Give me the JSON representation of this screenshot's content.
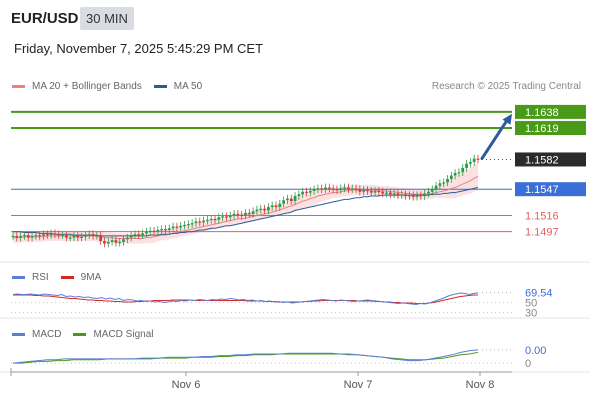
{
  "header": {
    "pair": "EUR/USD",
    "timeframe": "30 MIN",
    "datetime": "Friday, November 7, 2025 5:45:29 PM CET"
  },
  "legend_main": [
    {
      "label": "MA 20 + Bollinger Bands",
      "color": "#f08080"
    },
    {
      "label": "MA 50",
      "color": "#2c5aa0"
    }
  ],
  "credit": "Research © 2025 Trading Central",
  "legend_rsi": [
    {
      "label": "RSI",
      "color": "#5b7fd6"
    },
    {
      "label": "9MA",
      "color": "#d62728"
    }
  ],
  "legend_macd": [
    {
      "label": "MACD",
      "color": "#5b7fd6"
    },
    {
      "label": "MACD Signal",
      "color": "#4a9a1a"
    }
  ],
  "colors": {
    "resistance": "#4a9a1a",
    "pivot": "#3a6fd8",
    "support": "#e06060",
    "arrow": "#2c5aa0",
    "last_price_bg": "#2b2b2b",
    "bullish": "#2e9a4a",
    "bearish": "#d03c3c"
  },
  "chart_data": [
    {
      "type": "candlestick",
      "ylim": [
        1.1466,
        1.1652
      ],
      "x_ticks": [
        "Nov 6",
        "Nov 7",
        "Nov 8"
      ],
      "levels": [
        {
          "value": 1.1638,
          "label": "1.1638",
          "kind": "resistance"
        },
        {
          "value": 1.1619,
          "label": "1.1619",
          "kind": "resistance"
        },
        {
          "value": 1.1582,
          "label": "1.1582",
          "kind": "last"
        },
        {
          "value": 1.1547,
          "label": "1.1547",
          "kind": "pivot"
        },
        {
          "value": 1.1516,
          "label": "1.1516",
          "kind": "support"
        },
        {
          "value": 1.1497,
          "label": "1.1497",
          "kind": "support"
        }
      ],
      "close": [
        1.1492,
        1.149,
        1.1492,
        1.1493,
        1.149,
        1.1492,
        1.1493,
        1.1492,
        1.1494,
        1.1493,
        1.1495,
        1.1494,
        1.1493,
        1.1493,
        1.149,
        1.149,
        1.1492,
        1.149,
        1.1491,
        1.1493,
        1.1494,
        1.1492,
        1.1493,
        1.1486,
        1.1483,
        1.1485,
        1.1487,
        1.1484,
        1.1485,
        1.1488,
        1.149,
        1.1493,
        1.1494,
        1.1493,
        1.1495,
        1.1497,
        1.1498,
        1.1497,
        1.1499,
        1.15,
        1.1499,
        1.1501,
        1.1503,
        1.1502,
        1.1504,
        1.1505,
        1.1506,
        1.1507,
        1.1509,
        1.1508,
        1.151,
        1.1511,
        1.1512,
        1.1511,
        1.1514,
        1.1515,
        1.1514,
        1.1516,
        1.1518,
        1.1517,
        1.1516,
        1.1519,
        1.1518,
        1.1521,
        1.1523,
        1.1524,
        1.1522,
        1.1526,
        1.1528,
        1.1526,
        1.153,
        1.1534,
        1.1536,
        1.1533,
        1.1539,
        1.1541,
        1.1544,
        1.1543,
        1.1545,
        1.1547,
        1.1548,
        1.1547,
        1.1549,
        1.1548,
        1.1547,
        1.1546,
        1.1548,
        1.1549,
        1.1547,
        1.1548,
        1.1547,
        1.1544,
        1.1546,
        1.1545,
        1.1543,
        1.1545,
        1.1544,
        1.1542,
        1.1543,
        1.1541,
        1.1542,
        1.154,
        1.1541,
        1.1539,
        1.154,
        1.1538,
        1.154,
        1.1539,
        1.1542,
        1.1544,
        1.1547,
        1.1551,
        1.1554,
        1.1555,
        1.1559,
        1.1563,
        1.1566,
        1.1567,
        1.1572,
        1.1577,
        1.1579,
        1.1583,
        1.1582
      ],
      "ma20": [
        1.149,
        1.149,
        1.149,
        1.1491,
        1.1491,
        1.1491,
        1.1491,
        1.1491,
        1.1491,
        1.1492,
        1.1492,
        1.1492,
        1.1492,
        1.1492,
        1.1492,
        1.1492,
        1.1492,
        1.1492,
        1.1492,
        1.1492,
        1.1492,
        1.1492,
        1.1491,
        1.1491,
        1.149,
        1.149,
        1.149,
        1.1489,
        1.1489,
        1.1489,
        1.1489,
        1.1489,
        1.1489,
        1.1489,
        1.1489,
        1.149,
        1.149,
        1.1491,
        1.1492,
        1.1493,
        1.1493,
        1.1494,
        1.1495,
        1.1496,
        1.1497,
        1.1498,
        1.1499,
        1.15,
        1.1501,
        1.1502,
        1.1503,
        1.1504,
        1.1505,
        1.1506,
        1.1507,
        1.1508,
        1.1509,
        1.151,
        1.1511,
        1.1512,
        1.1512,
        1.1513,
        1.1514,
        1.1515,
        1.1516,
        1.1517,
        1.1518,
        1.1519,
        1.152,
        1.1521,
        1.1523,
        1.1524,
        1.1526,
        1.1527,
        1.1529,
        1.1531,
        1.1533,
        1.1534,
        1.1536,
        1.1537,
        1.1539,
        1.154,
        1.1541,
        1.1542,
        1.1543,
        1.1543,
        1.1544,
        1.1545,
        1.1545,
        1.1546,
        1.1546,
        1.1546,
        1.1546,
        1.1546,
        1.1546,
        1.1546,
        1.1545,
        1.1545,
        1.1545,
        1.1544,
        1.1544,
        1.1543,
        1.1543,
        1.1542,
        1.1542,
        1.1541,
        1.1541,
        1.1541,
        1.1541,
        1.1541,
        1.1542,
        1.1543,
        1.1544,
        1.1545,
        1.1546,
        1.1548,
        1.1549,
        1.1551,
        1.1553,
        1.1555,
        1.1557,
        1.156,
        1.1562
      ],
      "ma50": [
        1.1497,
        1.1497,
        1.1497,
        1.1496,
        1.1496,
        1.1496,
        1.1496,
        1.1495,
        1.1495,
        1.1495,
        1.1495,
        1.1494,
        1.1494,
        1.1494,
        1.1494,
        1.1494,
        1.1493,
        1.1493,
        1.1493,
        1.1493,
        1.1493,
        1.1493,
        1.1493,
        1.1492,
        1.1492,
        1.1492,
        1.1492,
        1.1492,
        1.1492,
        1.1492,
        1.1492,
        1.1492,
        1.1492,
        1.1492,
        1.1492,
        1.1492,
        1.1493,
        1.1493,
        1.1493,
        1.1494,
        1.1494,
        1.1494,
        1.1495,
        1.1495,
        1.1496,
        1.1496,
        1.1497,
        1.1497,
        1.1498,
        1.1499,
        1.1499,
        1.15,
        1.1501,
        1.1501,
        1.1502,
        1.1503,
        1.1504,
        1.1504,
        1.1505,
        1.1506,
        1.1507,
        1.1508,
        1.1509,
        1.151,
        1.1511,
        1.1512,
        1.1513,
        1.1514,
        1.1515,
        1.1516,
        1.1517,
        1.1518,
        1.1519,
        1.152,
        1.1522,
        1.1523,
        1.1524,
        1.1525,
        1.1526,
        1.1527,
        1.1528,
        1.1529,
        1.153,
        1.1531,
        1.1532,
        1.1533,
        1.1534,
        1.1535,
        1.1535,
        1.1536,
        1.1537,
        1.1537,
        1.1538,
        1.1538,
        1.1539,
        1.1539,
        1.1539,
        1.154,
        1.154,
        1.154,
        1.154,
        1.154,
        1.154,
        1.154,
        1.154,
        1.154,
        1.154,
        1.154,
        1.154,
        1.154,
        1.1541,
        1.1541,
        1.1541,
        1.1542,
        1.1542,
        1.1543,
        1.1543,
        1.1544,
        1.1545,
        1.1546,
        1.1547,
        1.1548,
        1.1549
      ]
    },
    {
      "type": "line",
      "name": "RSI",
      "ylim": [
        25,
        85
      ],
      "ticks": [
        {
          "value": 69.54,
          "label": "69.54"
        },
        {
          "value": 50,
          "label": "50"
        },
        {
          "value": 30,
          "label": "30"
        }
      ],
      "rsi": [
        66,
        67,
        66,
        66,
        67,
        66,
        65,
        67,
        66,
        65,
        64,
        66,
        62,
        63,
        61,
        62,
        60,
        61,
        59,
        58,
        60,
        57,
        59,
        56,
        58,
        54,
        56,
        55,
        53,
        54,
        52,
        53,
        51,
        52,
        50,
        51,
        53,
        52,
        54,
        53,
        55,
        54,
        56,
        55,
        54,
        56,
        55,
        57,
        56,
        58,
        57,
        55,
        56,
        54,
        55,
        53,
        54,
        52,
        53,
        51,
        52,
        50,
        51,
        49,
        50,
        51,
        52,
        53,
        54,
        55,
        56,
        55,
        54,
        53,
        55,
        54,
        53,
        52,
        53,
        54,
        55,
        54,
        53,
        52,
        51,
        50,
        49,
        48,
        49,
        48,
        47,
        46,
        48,
        47,
        49,
        52,
        55,
        58,
        62,
        65,
        67,
        69,
        68,
        66,
        68,
        69.54
      ],
      "rsi_ma": [
        65,
        65,
        65,
        65,
        65,
        64,
        64,
        63,
        63,
        62,
        61,
        60,
        59,
        58,
        58,
        57,
        56,
        55,
        55,
        54,
        54,
        53,
        53,
        52,
        52,
        51,
        51,
        51,
        52,
        52,
        53,
        53,
        54,
        54,
        54,
        54,
        55,
        55,
        55,
        55,
        55,
        54,
        54,
        54,
        54,
        54,
        54,
        54,
        54,
        54,
        54,
        54,
        54,
        53,
        53,
        53,
        53,
        52,
        52,
        52,
        51,
        51,
        51,
        51,
        51,
        51,
        52,
        52,
        53,
        53,
        54,
        54,
        54,
        54,
        54,
        54,
        54,
        54,
        53,
        53,
        53,
        53,
        52,
        52,
        51,
        51,
        50,
        50,
        49,
        49,
        49,
        48,
        48,
        48,
        49,
        50,
        52,
        54,
        56,
        58,
        60,
        62,
        63,
        64,
        65,
        65
      ]
    },
    {
      "type": "line",
      "name": "MACD",
      "ylim": [
        -0.0006,
        0.0028
      ],
      "ticks": [
        {
          "value": 0.0016,
          "label": "0.00"
        },
        {
          "value": 0.0,
          "label": "0"
        }
      ],
      "macd": [
        0.0,
        0.0001,
        0.0002,
        0.0003,
        0.0004,
        0.0004,
        0.0005,
        0.0005,
        0.0005,
        0.0005,
        0.0005,
        0.0005,
        0.0005,
        0.0005,
        0.0005,
        0.0006,
        0.0006,
        0.0006,
        0.0007,
        0.0007,
        0.0007,
        0.0007,
        0.0008,
        0.0008,
        0.0009,
        0.0009,
        0.001,
        0.001,
        0.0011,
        0.0011,
        0.0011,
        0.0011,
        0.0012,
        0.0012,
        0.0012,
        0.0012,
        0.0012,
        0.0012,
        0.0011,
        0.0011,
        0.001,
        0.0009,
        0.0008,
        0.0007,
        0.0005,
        0.0004,
        0.0003,
        0.0003,
        0.0004,
        0.0006,
        0.0008,
        0.001,
        0.0013,
        0.0015,
        0.0016
      ],
      "signal": [
        0.0,
        0.0,
        0.0001,
        0.0002,
        0.0002,
        0.0003,
        0.0003,
        0.0004,
        0.0004,
        0.0004,
        0.0004,
        0.0005,
        0.0005,
        0.0005,
        0.0005,
        0.0005,
        0.0005,
        0.0006,
        0.0006,
        0.0006,
        0.0006,
        0.0007,
        0.0007,
        0.0007,
        0.0008,
        0.0008,
        0.0009,
        0.0009,
        0.001,
        0.001,
        0.001,
        0.0011,
        0.0011,
        0.0011,
        0.0011,
        0.0011,
        0.0011,
        0.0011,
        0.0011,
        0.001,
        0.001,
        0.0009,
        0.0008,
        0.0007,
        0.0006,
        0.0005,
        0.0004,
        0.0004,
        0.0004,
        0.0005,
        0.0006,
        0.0008,
        0.001,
        0.0011,
        0.0013
      ]
    }
  ]
}
